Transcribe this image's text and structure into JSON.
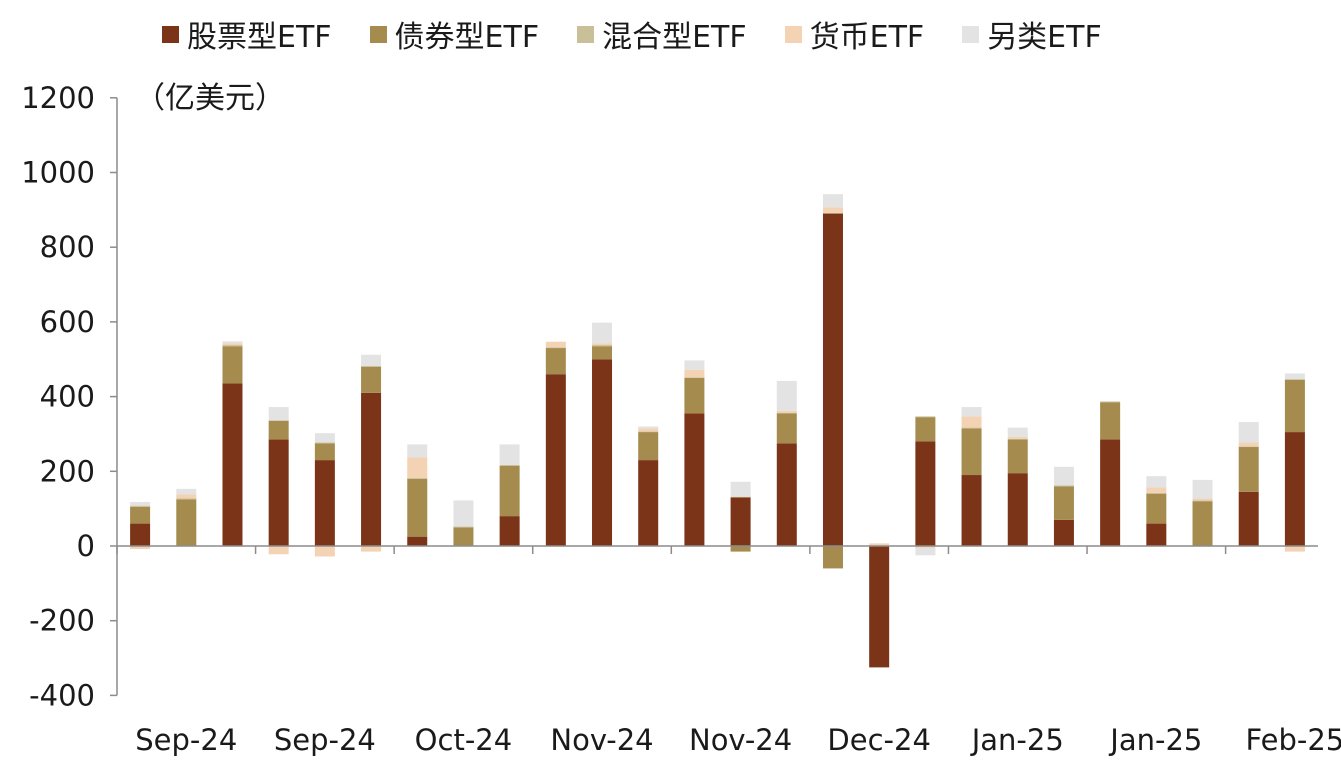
{
  "chart_data": {
    "type": "bar",
    "stacked": true,
    "unit_label": "（亿美元）",
    "title": "",
    "xlabel": "",
    "ylabel": "",
    "ylim": [
      -400,
      1200
    ],
    "yticks": [
      -400,
      -200,
      0,
      200,
      400,
      600,
      800,
      1000,
      1200
    ],
    "x_tick_labels": [
      "Sep-24",
      "Sep-24",
      "Oct-24",
      "Nov-24",
      "Nov-24",
      "Dec-24",
      "Jan-25",
      "Jan-25",
      "Feb-25"
    ],
    "grid": false,
    "legend_position": "top",
    "series": [
      {
        "name": "股票型ETF",
        "color": "#7B3418",
        "values": [
          60,
          0,
          435,
          285,
          230,
          410,
          25,
          0,
          80,
          460,
          500,
          230,
          355,
          130,
          275,
          890,
          -325,
          280,
          190,
          195,
          70,
          285,
          60,
          0,
          145,
          305
        ]
      },
      {
        "name": "债券型ETF",
        "color": "#A68B4E",
        "values": [
          45,
          125,
          100,
          50,
          45,
          70,
          155,
          50,
          135,
          70,
          35,
          75,
          95,
          -15,
          80,
          -60,
          0,
          65,
          125,
          90,
          90,
          100,
          80,
          120,
          120,
          140
        ]
      },
      {
        "name": "混合型ETF",
        "color": "#C9C09A",
        "values": [
          3,
          3,
          3,
          2,
          2,
          2,
          2,
          2,
          2,
          2,
          3,
          2,
          2,
          2,
          2,
          2,
          2,
          2,
          2,
          2,
          2,
          2,
          2,
          2,
          2,
          2
        ]
      },
      {
        "name": "货币ETF",
        "color": "#F4D2B4",
        "values": [
          -8,
          10,
          5,
          -22,
          -28,
          -15,
          55,
          0,
          0,
          15,
          5,
          8,
          20,
          0,
          5,
          15,
          5,
          -5,
          30,
          5,
          0,
          0,
          15,
          5,
          10,
          -15
        ]
      },
      {
        "name": "另类ETF",
        "color": "#E3E3E3",
        "values": [
          10,
          15,
          5,
          35,
          25,
          30,
          35,
          70,
          55,
          0,
          55,
          5,
          25,
          40,
          80,
          35,
          0,
          -20,
          25,
          25,
          50,
          0,
          30,
          50,
          55,
          15
        ]
      }
    ]
  }
}
